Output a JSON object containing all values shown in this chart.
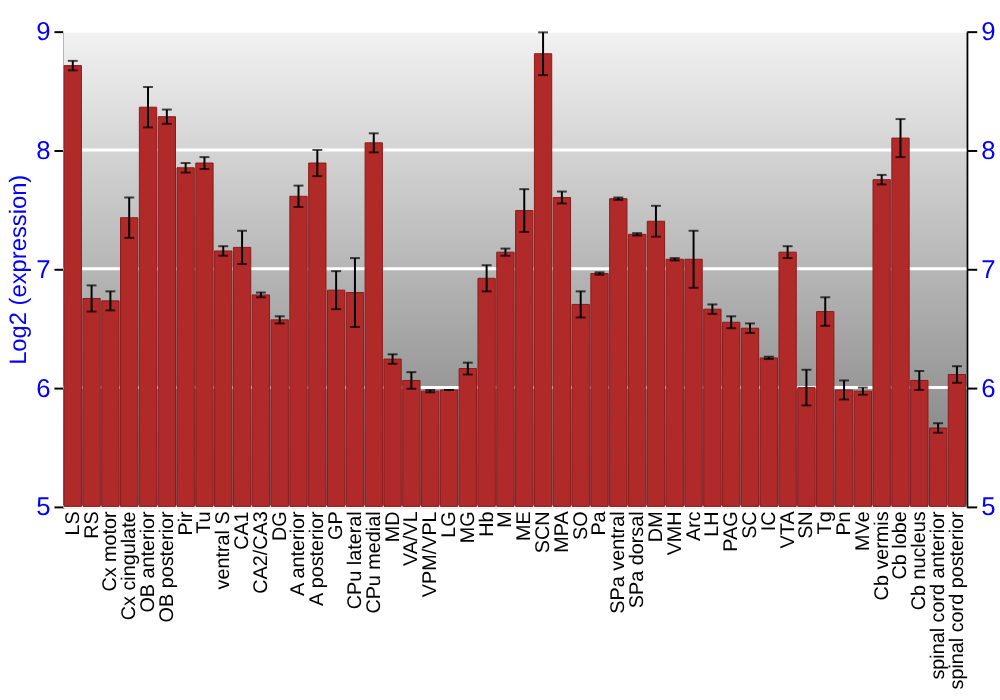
{
  "chart_data": {
    "type": "bar",
    "ylabel": "Log2 (expression)",
    "categories": [
      "LS",
      "RS",
      "Cx motor",
      "Cx cingulate",
      "OB anterior",
      "OB posterior",
      "Pir",
      "Tu",
      "ventral S",
      "CA1",
      "CA2/CA3",
      "DG",
      "A anterior",
      "A posterior",
      "GP",
      "CPu lateral",
      "CPu medial",
      "MD",
      "VA/VL",
      "VPM/VPL",
      "LG",
      "MG",
      "Hb",
      "M",
      "ME",
      "SCN",
      "MPA",
      "SO",
      "Pa",
      "SPa ventral",
      "SPa dorsal",
      "DM",
      "VMH",
      "Arc",
      "LH",
      "PAG",
      "SC",
      "IC",
      "VTA",
      "SN",
      "Tg",
      "Pn",
      "MVe",
      "Cb vermis",
      "Cb lobe",
      "Cb nucleus",
      "spinal cord anterior",
      "spinal cord posterior"
    ],
    "values": [
      8.71,
      6.75,
      6.73,
      7.43,
      8.36,
      8.28,
      7.85,
      7.89,
      7.15,
      7.18,
      6.78,
      6.57,
      7.61,
      7.89,
      6.82,
      6.8,
      8.06,
      6.24,
      6.06,
      5.97,
      5.98,
      6.16,
      6.92,
      7.14,
      7.49,
      8.81,
      7.6,
      6.7,
      6.96,
      7.59,
      7.29,
      7.4,
      7.08,
      7.08,
      6.66,
      6.55,
      6.5,
      6.25,
      7.14,
      6.0,
      6.64,
      5.98,
      5.97,
      7.75,
      8.1,
      6.06,
      5.66,
      6.11
    ],
    "errors": [
      0.04,
      0.11,
      0.08,
      0.17,
      0.17,
      0.06,
      0.04,
      0.05,
      0.04,
      0.14,
      0.02,
      0.03,
      0.09,
      0.11,
      0.16,
      0.29,
      0.08,
      0.04,
      0.07,
      0.01,
      0,
      0.05,
      0.11,
      0.03,
      0.18,
      0.18,
      0.05,
      0.11,
      0.01,
      0.01,
      0.01,
      0.13,
      0.01,
      0.24,
      0.04,
      0.05,
      0.04,
      0.01,
      0.05,
      0.15,
      0.12,
      0.08,
      0.03,
      0.04,
      0.16,
      0.08,
      0.04,
      0.07
    ],
    "color": "#b02a2a",
    "ylim": [
      5,
      9
    ],
    "yticks": [
      5,
      6,
      7,
      8,
      9
    ],
    "y2lim": [
      5,
      9
    ],
    "y2ticks": [
      5,
      6,
      7,
      8,
      9
    ],
    "grid": "y"
  }
}
